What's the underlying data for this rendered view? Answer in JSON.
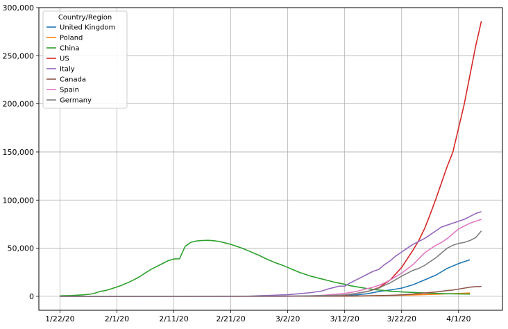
{
  "chart_data": {
    "type": "line",
    "title": "",
    "xlabel": "",
    "ylabel": "",
    "x_tick_labels": [
      "1/22/20",
      "2/1/20",
      "2/11/20",
      "2/21/20",
      "3/2/20",
      "3/12/20",
      "3/22/20",
      "4/1/20"
    ],
    "x_tick_days": [
      0,
      10,
      20,
      30,
      40,
      50,
      60,
      70
    ],
    "y_tick_values": [
      0,
      50000,
      100000,
      150000,
      200000,
      250000,
      300000
    ],
    "y_tick_labels": [
      "0",
      "50,000",
      "100,000",
      "150,000",
      "200,000",
      "250,000",
      "300,000"
    ],
    "ylim": [
      -14500,
      300000
    ],
    "grid": true,
    "legend": {
      "title": "Country/Region",
      "placement": "top-left"
    },
    "series": [
      {
        "name": "United Kingdom",
        "color": "#1f77b4",
        "points": [
          [
            0,
            0
          ],
          [
            38,
            40
          ],
          [
            44,
            200
          ],
          [
            48,
            500
          ],
          [
            50,
            800
          ],
          [
            52,
            1500
          ],
          [
            54,
            2700
          ],
          [
            56,
            5000
          ],
          [
            58,
            6600
          ],
          [
            60,
            8500
          ],
          [
            62,
            12000
          ],
          [
            64,
            17000
          ],
          [
            66,
            22000
          ],
          [
            68,
            29000
          ],
          [
            70,
            34000
          ],
          [
            72,
            38000
          ]
        ]
      },
      {
        "name": "Poland",
        "color": "#ff7f0e",
        "points": [
          [
            0,
            0
          ],
          [
            48,
            100
          ],
          [
            52,
            300
          ],
          [
            56,
            600
          ],
          [
            60,
            1100
          ],
          [
            64,
            1800
          ],
          [
            68,
            2600
          ],
          [
            70,
            3000
          ],
          [
            72,
            3400
          ]
        ]
      },
      {
        "name": "China",
        "color": "#2ca02c",
        "points": [
          [
            0,
            548
          ],
          [
            2,
            800
          ],
          [
            4,
            1500
          ],
          [
            5,
            2000
          ],
          [
            6,
            3000
          ],
          [
            7,
            5000
          ],
          [
            8,
            6000
          ],
          [
            9,
            7800
          ],
          [
            10,
            9700
          ],
          [
            11,
            11800
          ],
          [
            12,
            14400
          ],
          [
            13,
            17200
          ],
          [
            14,
            20400
          ],
          [
            15,
            24300
          ],
          [
            16,
            28000
          ],
          [
            17,
            31000
          ],
          [
            18,
            34000
          ],
          [
            19,
            37000
          ],
          [
            20,
            38800
          ],
          [
            21,
            39000
          ],
          [
            22,
            52000
          ],
          [
            23,
            56200
          ],
          [
            24,
            57500
          ],
          [
            25,
            58000
          ],
          [
            26,
            58200
          ],
          [
            27,
            57800
          ],
          [
            28,
            57000
          ],
          [
            29,
            55500
          ],
          [
            30,
            54000
          ],
          [
            31,
            52000
          ],
          [
            32,
            50000
          ],
          [
            33,
            47500
          ],
          [
            34,
            45000
          ],
          [
            35,
            42500
          ],
          [
            36,
            39500
          ],
          [
            37,
            37000
          ],
          [
            38,
            34500
          ],
          [
            39,
            32500
          ],
          [
            40,
            30000
          ],
          [
            41,
            27500
          ],
          [
            42,
            25000
          ],
          [
            43,
            23000
          ],
          [
            44,
            21000
          ],
          [
            45,
            19500
          ],
          [
            46,
            18000
          ],
          [
            47,
            16500
          ],
          [
            48,
            15000
          ],
          [
            49,
            13700
          ],
          [
            50,
            12500
          ],
          [
            51,
            11000
          ],
          [
            52,
            10000
          ],
          [
            53,
            9000
          ],
          [
            54,
            8000
          ],
          [
            55,
            7200
          ],
          [
            56,
            6500
          ],
          [
            57,
            6000
          ],
          [
            58,
            5400
          ],
          [
            59,
            5000
          ],
          [
            60,
            4600
          ],
          [
            61,
            4300
          ],
          [
            62,
            4000
          ],
          [
            64,
            3500
          ],
          [
            66,
            3000
          ],
          [
            68,
            2700
          ],
          [
            70,
            2500
          ],
          [
            72,
            2300
          ]
        ]
      },
      {
        "name": "US",
        "color": "#d62728",
        "points": [
          [
            0,
            0
          ],
          [
            40,
            50
          ],
          [
            46,
            400
          ],
          [
            48,
            700
          ],
          [
            50,
            1200
          ],
          [
            52,
            3000
          ],
          [
            54,
            5000
          ],
          [
            56,
            9000
          ],
          [
            58,
            17000
          ],
          [
            60,
            30000
          ],
          [
            62,
            48000
          ],
          [
            63,
            58000
          ],
          [
            64,
            70000
          ],
          [
            65,
            85000
          ],
          [
            66,
            101000
          ],
          [
            67,
            118000
          ],
          [
            68,
            135000
          ],
          [
            69,
            150000
          ],
          [
            70,
            175000
          ],
          [
            71,
            200000
          ],
          [
            72,
            230000
          ],
          [
            73,
            260000
          ],
          [
            74,
            286000
          ]
        ]
      },
      {
        "name": "Italy",
        "color": "#9467bd",
        "points": [
          [
            0,
            0
          ],
          [
            30,
            3
          ],
          [
            33,
            100
          ],
          [
            35,
            600
          ],
          [
            37,
            1000
          ],
          [
            40,
            1700
          ],
          [
            42,
            2700
          ],
          [
            44,
            3800
          ],
          [
            46,
            5500
          ],
          [
            47,
            7500
          ],
          [
            48,
            9000
          ],
          [
            49,
            10500
          ],
          [
            50,
            10600
          ],
          [
            51,
            14000
          ],
          [
            52,
            17000
          ],
          [
            53,
            20000
          ],
          [
            54,
            23000
          ],
          [
            55,
            26000
          ],
          [
            56,
            28000
          ],
          [
            57,
            33000
          ],
          [
            58,
            37000
          ],
          [
            59,
            42000
          ],
          [
            60,
            46000
          ],
          [
            61,
            50000
          ],
          [
            62,
            54000
          ],
          [
            63,
            57000
          ],
          [
            64,
            60000
          ],
          [
            65,
            64000
          ],
          [
            66,
            68000
          ],
          [
            67,
            72000
          ],
          [
            68,
            74000
          ],
          [
            69,
            76000
          ],
          [
            70,
            78000
          ],
          [
            71,
            80000
          ],
          [
            72,
            83000
          ],
          [
            73,
            86000
          ],
          [
            74,
            88000
          ]
        ]
      },
      {
        "name": "Canada",
        "color": "#8c564b",
        "points": [
          [
            0,
            0
          ],
          [
            48,
            100
          ],
          [
            52,
            300
          ],
          [
            56,
            700
          ],
          [
            58,
            1000
          ],
          [
            60,
            1500
          ],
          [
            62,
            2300
          ],
          [
            64,
            3500
          ],
          [
            66,
            4500
          ],
          [
            68,
            6000
          ],
          [
            69,
            6500
          ],
          [
            70,
            7500
          ],
          [
            71,
            8500
          ],
          [
            72,
            9500
          ],
          [
            73,
            10000
          ],
          [
            74,
            10200
          ]
        ]
      },
      {
        "name": "Spain",
        "color": "#e377c2",
        "points": [
          [
            0,
            0
          ],
          [
            40,
            100
          ],
          [
            44,
            500
          ],
          [
            46,
            1000
          ],
          [
            48,
            2000
          ],
          [
            50,
            3000
          ],
          [
            51,
            4000
          ],
          [
            52,
            5000
          ],
          [
            53,
            6500
          ],
          [
            54,
            8000
          ],
          [
            55,
            9500
          ],
          [
            56,
            11500
          ],
          [
            57,
            14000
          ],
          [
            58,
            17000
          ],
          [
            59,
            20500
          ],
          [
            60,
            24000
          ],
          [
            61,
            28500
          ],
          [
            62,
            33000
          ],
          [
            63,
            39000
          ],
          [
            64,
            45000
          ],
          [
            65,
            49000
          ],
          [
            66,
            53000
          ],
          [
            67,
            56000
          ],
          [
            68,
            60000
          ],
          [
            69,
            65000
          ],
          [
            70,
            70000
          ],
          [
            71,
            73000
          ],
          [
            72,
            76000
          ],
          [
            73,
            78000
          ],
          [
            74,
            80000
          ]
        ]
      },
      {
        "name": "Germany",
        "color": "#7f7f7f",
        "points": [
          [
            0,
            0
          ],
          [
            38,
            200
          ],
          [
            44,
            500
          ],
          [
            48,
            1000
          ],
          [
            50,
            1500
          ],
          [
            52,
            3000
          ],
          [
            54,
            5000
          ],
          [
            56,
            8500
          ],
          [
            57,
            11500
          ],
          [
            58,
            14000
          ],
          [
            59,
            17500
          ],
          [
            60,
            21000
          ],
          [
            61,
            24000
          ],
          [
            62,
            27000
          ],
          [
            63,
            29000
          ],
          [
            64,
            32000
          ],
          [
            65,
            36000
          ],
          [
            66,
            40000
          ],
          [
            67,
            45000
          ],
          [
            68,
            50000
          ],
          [
            69,
            53000
          ],
          [
            70,
            55000
          ],
          [
            71,
            56000
          ],
          [
            72,
            58000
          ],
          [
            73,
            61000
          ],
          [
            74,
            68000
          ]
        ]
      }
    ]
  }
}
